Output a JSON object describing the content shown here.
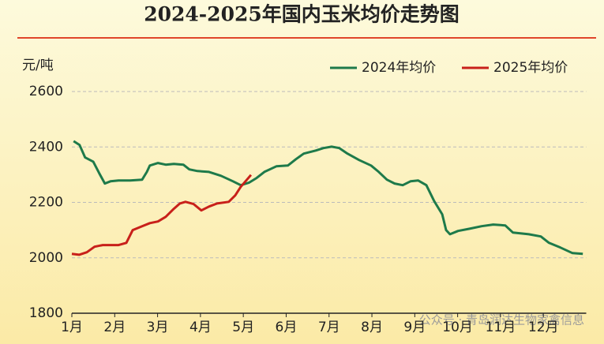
{
  "chart_data": {
    "type": "line",
    "title": "2024-2025年国内玉米均价走势图",
    "y_label": "元/吨",
    "watermark": "公众号 · 青岛润达生物家禽信息",
    "xlim": [
      1,
      13
    ],
    "xticks": [
      {
        "value": 1,
        "label": "1月"
      },
      {
        "value": 2,
        "label": "2月"
      },
      {
        "value": 3,
        "label": "3月"
      },
      {
        "value": 4,
        "label": "4月"
      },
      {
        "value": 5,
        "label": "5月"
      },
      {
        "value": 6,
        "label": "6月"
      },
      {
        "value": 7,
        "label": "7月"
      },
      {
        "value": 8,
        "label": "8月"
      },
      {
        "value": 9,
        "label": "9月"
      },
      {
        "value": 10,
        "label": "10月"
      },
      {
        "value": 11,
        "label": "11月"
      },
      {
        "value": 12,
        "label": "12月"
      }
    ],
    "ylim": [
      1800,
      2600
    ],
    "yticks": [
      1800,
      2000,
      2200,
      2400,
      2600
    ],
    "grid": true,
    "legend": "top-right",
    "series": [
      {
        "name": "2024年均价",
        "color": "#1e7a4a",
        "x": [
          1.04,
          1.18,
          1.31,
          1.5,
          1.64,
          1.77,
          1.9,
          2.09,
          2.36,
          2.64,
          2.75,
          2.82,
          3.01,
          3.19,
          3.38,
          3.6,
          3.74,
          3.93,
          4.2,
          4.48,
          4.76,
          4.94,
          5.13,
          5.31,
          5.49,
          5.77,
          6.04,
          6.23,
          6.41,
          6.69,
          6.87,
          7.06,
          7.24,
          7.43,
          7.7,
          7.98,
          8.16,
          8.35,
          8.53,
          8.72,
          8.9,
          9.08,
          9.27,
          9.45,
          9.64,
          9.73,
          9.82,
          10.01,
          10.28,
          10.56,
          10.83,
          11.11,
          11.29,
          11.66,
          11.94,
          12.13,
          12.4,
          12.68,
          12.92
        ],
        "values": [
          2421,
          2407,
          2362,
          2347,
          2305,
          2268,
          2276,
          2279,
          2279,
          2282,
          2310,
          2333,
          2342,
          2336,
          2339,
          2336,
          2319,
          2313,
          2310,
          2296,
          2276,
          2262,
          2271,
          2288,
          2310,
          2330,
          2333,
          2356,
          2376,
          2387,
          2396,
          2401,
          2396,
          2376,
          2353,
          2333,
          2310,
          2282,
          2268,
          2262,
          2276,
          2279,
          2262,
          2205,
          2157,
          2100,
          2085,
          2097,
          2105,
          2114,
          2120,
          2117,
          2091,
          2085,
          2077,
          2054,
          2037,
          2017,
          2014
        ]
      },
      {
        "name": "2025年均价",
        "color": "#c8201a",
        "x": [
          1.0,
          1.17,
          1.35,
          1.53,
          1.72,
          2.09,
          2.27,
          2.42,
          2.64,
          2.82,
          3.01,
          3.19,
          3.38,
          3.52,
          3.65,
          3.84,
          4.02,
          4.2,
          4.39,
          4.66,
          4.81,
          4.94,
          5.18
        ],
        "values": [
          2014,
          2011,
          2020,
          2040,
          2046,
          2046,
          2054,
          2100,
          2114,
          2125,
          2131,
          2148,
          2177,
          2196,
          2202,
          2194,
          2171,
          2185,
          2196,
          2202,
          2225,
          2256,
          2299
        ]
      }
    ]
  }
}
